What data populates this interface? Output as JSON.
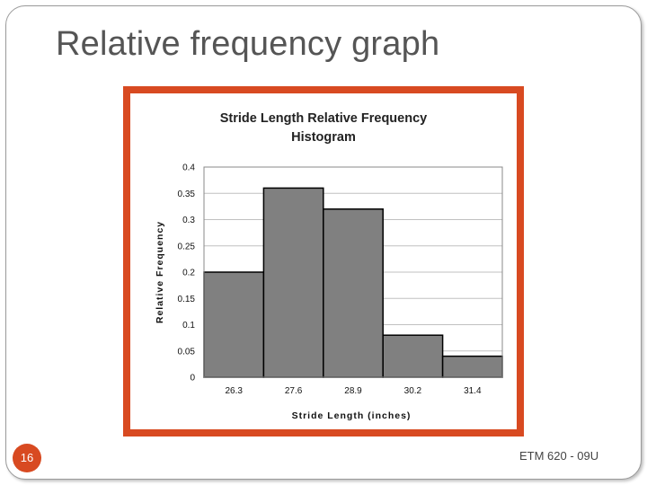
{
  "slide": {
    "title": "Relative frequency graph",
    "page_number": "16",
    "footer": "ETM 620 - 09U"
  },
  "colors": {
    "accent": "#d84a21",
    "bar_fill": "#808080",
    "bar_stroke": "#000000",
    "gridline": "#c0c0c0"
  },
  "chart_data": {
    "type": "bar",
    "title_lines": [
      "Stride Length Relative Frequency",
      "Histogram"
    ],
    "xlabel": "Stride Length (inches)",
    "ylabel": "Relative Frequency",
    "categories": [
      "26.3",
      "27.6",
      "28.9",
      "30.2",
      "31.4"
    ],
    "values": [
      0.2,
      0.36,
      0.32,
      0.08,
      0.04
    ],
    "ylim": [
      0,
      0.4
    ],
    "yticks": [
      0,
      0.05,
      0.1,
      0.15,
      0.2,
      0.25,
      0.3,
      0.35,
      0.4
    ],
    "ytick_labels": [
      "0",
      "0.05",
      "0.1",
      "0.15",
      "0.2",
      "0.25",
      "0.3",
      "0.35",
      "0.4"
    ],
    "grid": true,
    "legend": "none"
  }
}
